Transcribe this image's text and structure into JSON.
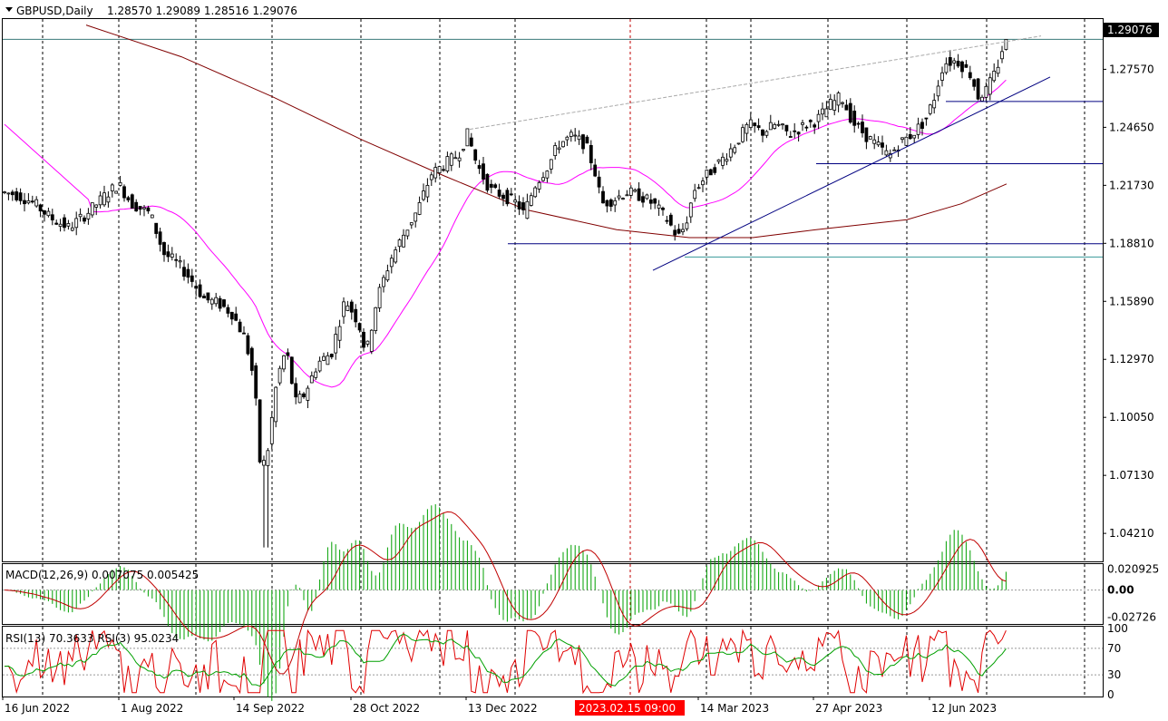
{
  "chart_data": {
    "type": "candlestick",
    "symbol_header": "GBPUSD,Daily",
    "ohlc_header": "1.28570 1.29089 1.28516 1.29076",
    "current_price_label": "1.29076",
    "price_axis_ticks": [
      "1.27570",
      "1.24650",
      "1.21730",
      "1.18810",
      "1.15890",
      "1.12970",
      "1.10050",
      "1.07130",
      "1.04210"
    ],
    "price_axis_values": [
      1.2757,
      1.2465,
      1.2173,
      1.1881,
      1.1589,
      1.1297,
      1.1005,
      1.0713,
      1.0421
    ],
    "x_axis_labels": [
      "16 Jun 2022",
      "1 Aug 2022",
      "14 Sep 2022",
      "28 Oct 2022",
      "13 Dec 2022",
      "14 Mar 2023",
      "27 Apr 2023",
      "12 Jun 2023"
    ],
    "highlighted_time_label": "2023.02.15 09:00",
    "highlight_color": "#ff0000",
    "up_color": "#ffffff",
    "down_color": "#000000",
    "ma_fast_color": "#ff00ff",
    "ma_slow_color": "#800000",
    "trendline_color": "#000080",
    "grid": true,
    "ylim": [
      1.028,
      1.301
    ],
    "key_values": {
      "low_sep_2022": 1.035,
      "high_jul_2023": 1.2909,
      "support_levels": [
        1.2595,
        1.2282,
        1.1879
      ],
      "support_level_2": 1.1812
    },
    "macd": {
      "label": "MACD(12,26,9) 0.007075 0.005425",
      "ticks": [
        "0.020925",
        "0.00",
        "-0.02726"
      ],
      "tick_values": [
        0.020925,
        0.0,
        -0.02726
      ],
      "histogram_color": "#00a000",
      "signal_color": "#c00000"
    },
    "rsi": {
      "label": "RSI(13) 70.3633  RSI(3) 95.0234",
      "ticks": [
        "100",
        "70",
        "30",
        "0"
      ],
      "tick_values": [
        100,
        70,
        30,
        0
      ],
      "rsi13_color": "#00a000",
      "rsi3_color": "#e00000"
    }
  }
}
